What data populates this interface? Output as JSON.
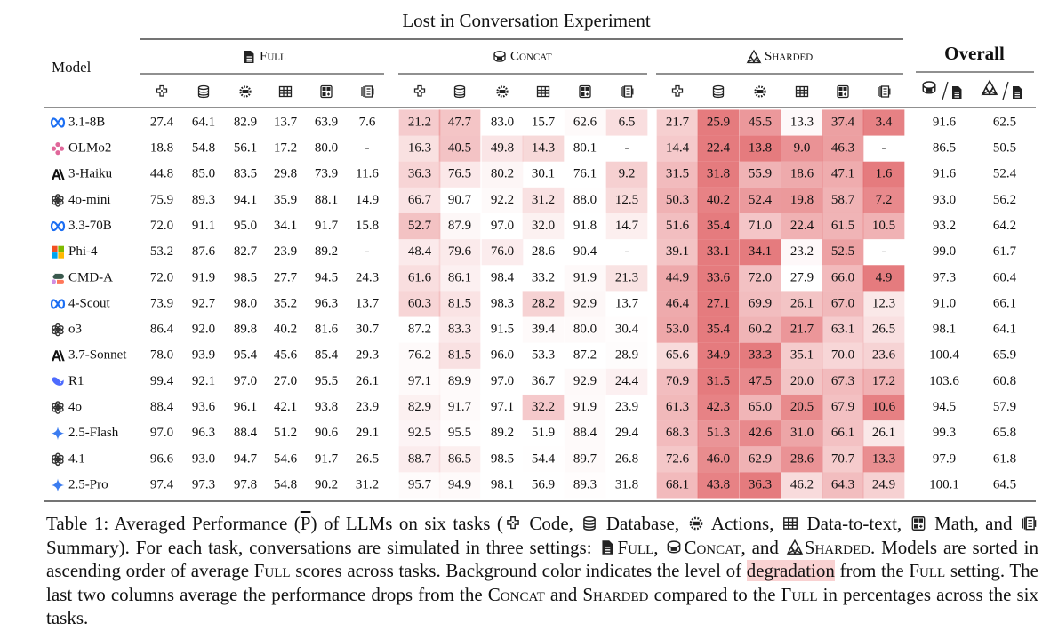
{
  "table": {
    "title": "Lost in Conversation Experiment",
    "model_header": "Model",
    "groups": [
      "Full",
      "Concat",
      "Sharded"
    ],
    "overall_header": "Overall",
    "rows": [
      {
        "model": "3.1-8B",
        "full": [
          "27.4",
          "64.1",
          "82.9",
          "13.7",
          "63.9",
          "7.6"
        ],
        "concat": [
          "21.2",
          "47.7",
          "83.0",
          "15.7",
          "62.6",
          "6.5"
        ],
        "sharded": [
          "21.7",
          "25.9",
          "45.5",
          "13.3",
          "37.4",
          "3.4"
        ],
        "overall": [
          "91.6",
          "62.5"
        ]
      },
      {
        "model": "OLMo2",
        "full": [
          "18.8",
          "54.8",
          "56.1",
          "17.2",
          "80.0",
          "-"
        ],
        "concat": [
          "16.3",
          "40.5",
          "49.8",
          "14.3",
          "80.1",
          "-"
        ],
        "sharded": [
          "14.4",
          "22.4",
          "13.8",
          "9.0",
          "46.3",
          "-"
        ],
        "overall": [
          "86.5",
          "50.5"
        ]
      },
      {
        "model": "3-Haiku",
        "full": [
          "44.8",
          "85.0",
          "83.5",
          "29.8",
          "73.9",
          "11.6"
        ],
        "concat": [
          "36.3",
          "76.5",
          "80.2",
          "30.1",
          "76.1",
          "9.2"
        ],
        "sharded": [
          "31.5",
          "31.8",
          "55.9",
          "18.6",
          "47.1",
          "1.6"
        ],
        "overall": [
          "91.6",
          "52.4"
        ]
      },
      {
        "model": "4o-mini",
        "full": [
          "75.9",
          "89.3",
          "94.1",
          "35.9",
          "88.1",
          "14.9"
        ],
        "concat": [
          "66.7",
          "90.7",
          "92.2",
          "31.2",
          "88.0",
          "12.5"
        ],
        "sharded": [
          "50.3",
          "40.2",
          "52.4",
          "19.8",
          "58.7",
          "7.2"
        ],
        "overall": [
          "93.0",
          "56.2"
        ]
      },
      {
        "model": "3.3-70B",
        "full": [
          "72.0",
          "91.1",
          "95.0",
          "34.1",
          "91.7",
          "15.8"
        ],
        "concat": [
          "52.7",
          "87.9",
          "97.0",
          "32.0",
          "91.8",
          "14.7"
        ],
        "sharded": [
          "51.6",
          "35.4",
          "71.0",
          "22.4",
          "61.5",
          "10.5"
        ],
        "overall": [
          "93.2",
          "64.2"
        ]
      },
      {
        "model": "Phi-4",
        "full": [
          "53.2",
          "87.6",
          "82.7",
          "23.9",
          "89.2",
          "-"
        ],
        "concat": [
          "48.4",
          "79.6",
          "76.0",
          "28.6",
          "90.4",
          "-"
        ],
        "sharded": [
          "39.1",
          "33.1",
          "34.1",
          "23.2",
          "52.5",
          "-"
        ],
        "overall": [
          "99.0",
          "61.7"
        ]
      },
      {
        "model": "CMD-A",
        "full": [
          "72.0",
          "91.9",
          "98.5",
          "27.7",
          "94.5",
          "24.3"
        ],
        "concat": [
          "61.6",
          "86.1",
          "98.4",
          "33.2",
          "91.9",
          "21.3"
        ],
        "sharded": [
          "44.9",
          "33.6",
          "72.0",
          "27.9",
          "66.0",
          "4.9"
        ],
        "overall": [
          "97.3",
          "60.4"
        ]
      },
      {
        "model": "4-Scout",
        "full": [
          "73.9",
          "92.7",
          "98.0",
          "35.2",
          "96.3",
          "13.7"
        ],
        "concat": [
          "60.3",
          "81.5",
          "98.3",
          "28.2",
          "92.9",
          "13.7"
        ],
        "sharded": [
          "46.4",
          "27.1",
          "69.9",
          "26.1",
          "67.0",
          "12.3"
        ],
        "overall": [
          "91.0",
          "66.1"
        ]
      },
      {
        "model": "o3",
        "full": [
          "86.4",
          "92.0",
          "89.8",
          "40.2",
          "81.6",
          "30.7"
        ],
        "concat": [
          "87.2",
          "83.3",
          "91.5",
          "39.4",
          "80.0",
          "30.4"
        ],
        "sharded": [
          "53.0",
          "35.4",
          "60.2",
          "21.7",
          "63.1",
          "26.5"
        ],
        "overall": [
          "98.1",
          "64.1"
        ]
      },
      {
        "model": "3.7-Sonnet",
        "full": [
          "78.0",
          "93.9",
          "95.4",
          "45.6",
          "85.4",
          "29.3"
        ],
        "concat": [
          "76.2",
          "81.5",
          "96.0",
          "53.3",
          "87.2",
          "28.9"
        ],
        "sharded": [
          "65.6",
          "34.9",
          "33.3",
          "35.1",
          "70.0",
          "23.6"
        ],
        "overall": [
          "100.4",
          "65.9"
        ]
      },
      {
        "model": "R1",
        "full": [
          "99.4",
          "92.1",
          "97.0",
          "27.0",
          "95.5",
          "26.1"
        ],
        "concat": [
          "97.1",
          "89.9",
          "97.0",
          "36.7",
          "92.9",
          "24.4"
        ],
        "sharded": [
          "70.9",
          "31.5",
          "47.5",
          "20.0",
          "67.3",
          "17.2"
        ],
        "overall": [
          "103.6",
          "60.8"
        ]
      },
      {
        "model": "4o",
        "full": [
          "88.4",
          "93.6",
          "96.1",
          "42.1",
          "93.8",
          "23.9"
        ],
        "concat": [
          "82.9",
          "91.7",
          "97.1",
          "32.2",
          "91.9",
          "23.9"
        ],
        "sharded": [
          "61.3",
          "42.3",
          "65.0",
          "20.5",
          "67.9",
          "10.6"
        ],
        "overall": [
          "94.5",
          "57.9"
        ]
      },
      {
        "model": "2.5-Flash",
        "full": [
          "97.0",
          "96.3",
          "88.4",
          "51.2",
          "90.6",
          "29.1"
        ],
        "concat": [
          "92.5",
          "95.5",
          "89.2",
          "51.9",
          "88.4",
          "29.4"
        ],
        "sharded": [
          "68.3",
          "51.3",
          "42.6",
          "31.0",
          "66.1",
          "26.1"
        ],
        "overall": [
          "99.3",
          "65.8"
        ]
      },
      {
        "model": "4.1",
        "full": [
          "96.6",
          "93.0",
          "94.7",
          "54.6",
          "91.7",
          "26.5"
        ],
        "concat": [
          "88.7",
          "86.5",
          "98.5",
          "54.4",
          "89.7",
          "26.8"
        ],
        "sharded": [
          "72.6",
          "46.0",
          "62.9",
          "28.6",
          "70.7",
          "13.3"
        ],
        "overall": [
          "97.9",
          "61.8"
        ]
      },
      {
        "model": "2.5-Pro",
        "full": [
          "97.4",
          "97.3",
          "97.8",
          "54.8",
          "90.2",
          "31.2"
        ],
        "concat": [
          "95.7",
          "94.9",
          "98.1",
          "56.9",
          "89.3",
          "31.8"
        ],
        "sharded": [
          "68.1",
          "43.8",
          "36.3",
          "46.2",
          "64.3",
          "24.9"
        ],
        "overall": [
          "100.1",
          "64.5"
        ]
      }
    ]
  },
  "caption": [
    "Table 1: Averaged Performance (",
    "P",
    ") of LLMs on six tasks (",
    " Code, ",
    " Database, ",
    " Actions, ",
    " Data-to-text, ",
    " Math, and ",
    " Summary). For each task, conversations are simulated in three settings: ",
    "Full",
    ", ",
    "Concat",
    ", and ",
    "Sharded",
    ". Models are sorted in ascending order of average ",
    "Full",
    " scores across tasks. Background color indicates the level of ",
    "degradation",
    " from the ",
    "Full",
    " setting. The last two columns average the performance drops from the ",
    "Concat",
    " and ",
    "Sharded",
    " compared to the ",
    "Full",
    " in percentages across the six tasks."
  ]
}
